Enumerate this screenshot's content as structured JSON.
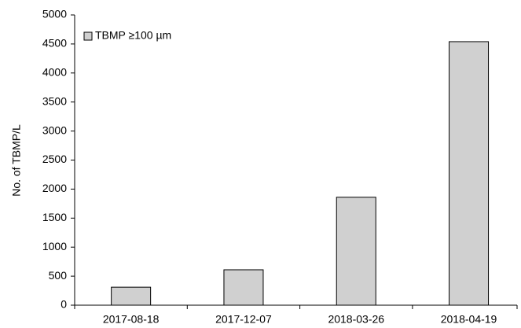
{
  "chart_data": {
    "type": "bar",
    "y_label": "No. of TBMP/L",
    "categories": [
      "2017-08-18",
      "2017-12-07",
      "2018-03-26",
      "2018-04-19"
    ],
    "series": [
      {
        "name": "TBMP ≥100 µm",
        "color": "#d0d0d0",
        "values": [
          310,
          610,
          1860,
          4540
        ]
      }
    ],
    "ylim": [
      0,
      5000
    ],
    "yticks": [
      0,
      500,
      1000,
      1500,
      2000,
      2500,
      3000,
      3500,
      4000,
      4500,
      5000
    ],
    "legend": "top-left",
    "grid": false
  }
}
